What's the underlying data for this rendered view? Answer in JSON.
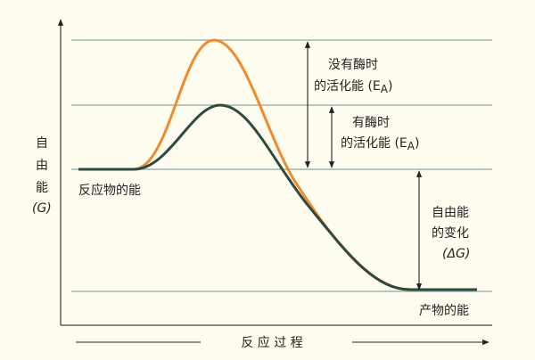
{
  "axes": {
    "y_label": [
      "自",
      "由",
      "能",
      "(G)"
    ],
    "x_label": "反 应 过 程"
  },
  "annotations": {
    "uncatalyzed": {
      "line1": "没有酶时",
      "line2": "的活化能 (E",
      "sub": "A",
      "close": ")"
    },
    "catalyzed": {
      "line1": "有酶时",
      "line2": "的活化能 (E",
      "sub": "A",
      "close": ")"
    },
    "reactants": "反应物的能",
    "delta_g": {
      "line1": "自由能",
      "line2": "的变化",
      "line3": "(ΔG)"
    },
    "products": "产物的能"
  }
}
